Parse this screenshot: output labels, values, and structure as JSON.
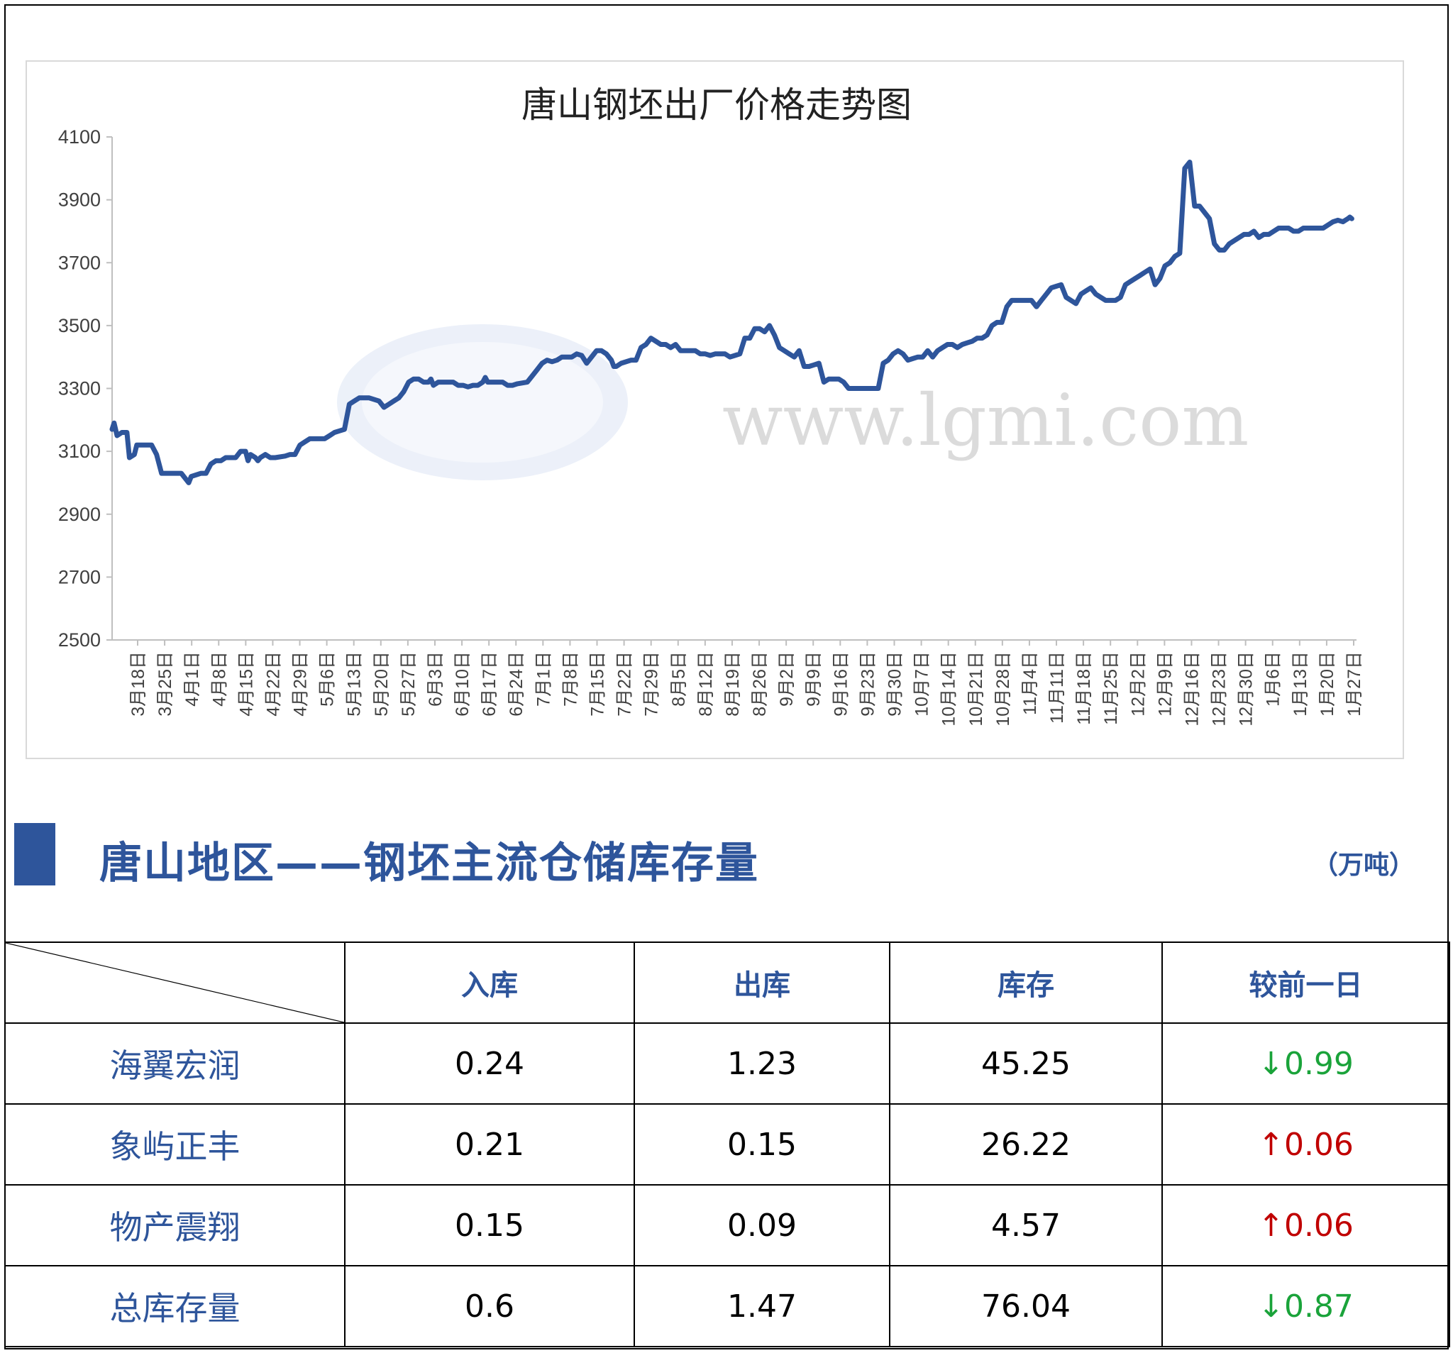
{
  "chart_data": {
    "type": "line",
    "title": "唐山钢坯出厂价格走势图",
    "xlabel": "",
    "ylabel": "",
    "ylim": [
      2500,
      4100
    ],
    "yticks": [
      2500,
      2700,
      2900,
      3100,
      3300,
      3500,
      3700,
      3900,
      4100
    ],
    "xtick_labels": [
      "3月18日",
      "3月25日",
      "4月1日",
      "4月8日",
      "4月15日",
      "4月22日",
      "4月29日",
      "5月6日",
      "5月13日",
      "5月20日",
      "5月27日",
      "6月3日",
      "6月10日",
      "6月17日",
      "6月24日",
      "7月1日",
      "7月8日",
      "7月15日",
      "7月22日",
      "7月29日",
      "8月5日",
      "8月12日",
      "8月19日",
      "8月26日",
      "9月2日",
      "9月9日",
      "9月16日",
      "9月23日",
      "9月30日",
      "10月7日",
      "10月14日",
      "10月21日",
      "10月28日",
      "11月4日",
      "11月11日",
      "11月18日",
      "11月25日",
      "12月2日",
      "12月9日",
      "12月16日",
      "12月23日",
      "12月30日",
      "1月6日",
      "1月13日",
      "1月20日",
      "1月27日"
    ],
    "grid": false,
    "legend": "none",
    "color": "#2e559b",
    "watermark": "www.lgmi.com",
    "series": [
      {
        "name": "",
        "points": [
          [
            0,
            3170
          ],
          [
            0.4,
            3190
          ],
          [
            1,
            3150
          ],
          [
            2,
            3160
          ],
          [
            3,
            3160
          ],
          [
            3.5,
            3080
          ],
          [
            4.5,
            3090
          ],
          [
            5,
            3120
          ],
          [
            6,
            3120
          ],
          [
            7,
            3120
          ],
          [
            8,
            3120
          ],
          [
            9,
            3090
          ],
          [
            9.5,
            3060
          ],
          [
            10,
            3030
          ],
          [
            12,
            3030
          ],
          [
            14,
            3030
          ],
          [
            15,
            3010
          ],
          [
            15.5,
            3000
          ],
          [
            16,
            3020
          ],
          [
            18,
            3030
          ],
          [
            19,
            3030
          ],
          [
            20,
            3060
          ],
          [
            21,
            3070
          ],
          [
            22,
            3070
          ],
          [
            23,
            3080
          ],
          [
            25,
            3080
          ],
          [
            26,
            3100
          ],
          [
            27,
            3100
          ],
          [
            27.5,
            3070
          ],
          [
            28,
            3090
          ],
          [
            29,
            3080
          ],
          [
            29.5,
            3070
          ],
          [
            30,
            3080
          ],
          [
            31,
            3090
          ],
          [
            32,
            3080
          ],
          [
            33,
            3080
          ],
          [
            35,
            3085
          ],
          [
            36,
            3090
          ],
          [
            37,
            3090
          ],
          [
            38,
            3120
          ],
          [
            39,
            3130
          ],
          [
            40,
            3140
          ],
          [
            42,
            3140
          ],
          [
            43,
            3140
          ],
          [
            44,
            3150
          ],
          [
            45,
            3160
          ],
          [
            46,
            3165
          ],
          [
            47,
            3170
          ],
          [
            48,
            3250
          ],
          [
            49,
            3260
          ],
          [
            50,
            3270
          ],
          [
            52,
            3270
          ],
          [
            54,
            3260
          ],
          [
            55,
            3240
          ],
          [
            56,
            3250
          ],
          [
            57,
            3260
          ],
          [
            58,
            3270
          ],
          [
            59,
            3290
          ],
          [
            60,
            3320
          ],
          [
            61,
            3330
          ],
          [
            62,
            3330
          ],
          [
            63,
            3320
          ],
          [
            64,
            3320
          ],
          [
            64.5,
            3330
          ],
          [
            65,
            3310
          ],
          [
            66,
            3320
          ],
          [
            68,
            3320
          ],
          [
            69,
            3320
          ],
          [
            70,
            3310
          ],
          [
            71,
            3310
          ],
          [
            72,
            3305
          ],
          [
            73,
            3310
          ],
          [
            74,
            3310
          ],
          [
            75,
            3320
          ],
          [
            75.5,
            3335
          ],
          [
            76,
            3320
          ],
          [
            78,
            3320
          ],
          [
            79,
            3320
          ],
          [
            80,
            3310
          ],
          [
            81,
            3310
          ],
          [
            82,
            3315
          ],
          [
            84,
            3320
          ],
          [
            85,
            3340
          ],
          [
            86,
            3360
          ],
          [
            87,
            3380
          ],
          [
            88,
            3390
          ],
          [
            89,
            3385
          ],
          [
            90,
            3390
          ],
          [
            91,
            3400
          ],
          [
            93,
            3400
          ],
          [
            94,
            3410
          ],
          [
            95,
            3405
          ],
          [
            96,
            3380
          ],
          [
            97,
            3400
          ],
          [
            98,
            3420
          ],
          [
            99,
            3420
          ],
          [
            100,
            3410
          ],
          [
            101,
            3390
          ],
          [
            101.5,
            3370
          ],
          [
            102,
            3370
          ],
          [
            103,
            3380
          ],
          [
            105,
            3390
          ],
          [
            106,
            3390
          ],
          [
            107,
            3430
          ],
          [
            108,
            3440
          ],
          [
            109,
            3460
          ],
          [
            110,
            3450
          ],
          [
            111,
            3440
          ],
          [
            112,
            3440
          ],
          [
            113,
            3430
          ],
          [
            114,
            3440
          ],
          [
            115,
            3420
          ],
          [
            117,
            3420
          ],
          [
            118,
            3420
          ],
          [
            119,
            3410
          ],
          [
            120,
            3410
          ],
          [
            121,
            3405
          ],
          [
            122,
            3410
          ],
          [
            123,
            3410
          ],
          [
            124,
            3410
          ],
          [
            125,
            3400
          ],
          [
            126,
            3405
          ],
          [
            127,
            3410
          ],
          [
            128,
            3460
          ],
          [
            129,
            3460
          ],
          [
            130,
            3490
          ],
          [
            131,
            3490
          ],
          [
            132,
            3480
          ],
          [
            133,
            3500
          ],
          [
            134,
            3470
          ],
          [
            135,
            3430
          ],
          [
            136,
            3420
          ],
          [
            137,
            3410
          ],
          [
            138,
            3400
          ],
          [
            139,
            3420
          ],
          [
            140,
            3370
          ],
          [
            141,
            3370
          ],
          [
            142,
            3375
          ],
          [
            143,
            3380
          ],
          [
            144,
            3320
          ],
          [
            145,
            3330
          ],
          [
            146,
            3330
          ],
          [
            147,
            3330
          ],
          [
            148,
            3320
          ],
          [
            149,
            3300
          ],
          [
            151,
            3300
          ],
          [
            153,
            3300
          ],
          [
            154,
            3300
          ],
          [
            155,
            3300
          ],
          [
            156,
            3380
          ],
          [
            157,
            3390
          ],
          [
            158,
            3410
          ],
          [
            159,
            3420
          ],
          [
            160,
            3410
          ],
          [
            161,
            3390
          ],
          [
            162,
            3395
          ],
          [
            163,
            3400
          ],
          [
            164,
            3400
          ],
          [
            165,
            3420
          ],
          [
            166,
            3400
          ],
          [
            167,
            3420
          ],
          [
            168,
            3430
          ],
          [
            169,
            3440
          ],
          [
            170,
            3440
          ],
          [
            171,
            3430
          ],
          [
            172,
            3440
          ],
          [
            173,
            3445
          ],
          [
            174,
            3450
          ],
          [
            175,
            3460
          ],
          [
            176,
            3460
          ],
          [
            177,
            3470
          ],
          [
            178,
            3500
          ],
          [
            179,
            3510
          ],
          [
            180,
            3510
          ],
          [
            181,
            3560
          ],
          [
            182,
            3580
          ],
          [
            184,
            3580
          ],
          [
            185,
            3580
          ],
          [
            186,
            3580
          ],
          [
            187,
            3560
          ],
          [
            188,
            3580
          ],
          [
            189,
            3600
          ],
          [
            190,
            3620
          ],
          [
            191,
            3625
          ],
          [
            192,
            3630
          ],
          [
            193,
            3590
          ],
          [
            194,
            3580
          ],
          [
            195,
            3570
          ],
          [
            196,
            3600
          ],
          [
            197,
            3610
          ],
          [
            198,
            3620
          ],
          [
            199,
            3600
          ],
          [
            200,
            3590
          ],
          [
            201,
            3580
          ],
          [
            202,
            3580
          ],
          [
            203,
            3580
          ],
          [
            204,
            3590
          ],
          [
            205,
            3630
          ],
          [
            206,
            3640
          ],
          [
            207,
            3650
          ],
          [
            208,
            3660
          ],
          [
            209,
            3670
          ],
          [
            210,
            3680
          ],
          [
            211,
            3630
          ],
          [
            212,
            3650
          ],
          [
            213,
            3690
          ],
          [
            214,
            3700
          ],
          [
            215,
            3720
          ],
          [
            216,
            3730
          ],
          [
            217,
            4000
          ],
          [
            218,
            4020
          ],
          [
            219,
            3880
          ],
          [
            220,
            3880
          ],
          [
            221,
            3860
          ],
          [
            222,
            3840
          ],
          [
            223,
            3760
          ],
          [
            224,
            3740
          ],
          [
            225,
            3740
          ],
          [
            226,
            3760
          ],
          [
            227,
            3770
          ],
          [
            228,
            3780
          ],
          [
            229,
            3790
          ],
          [
            230,
            3790
          ],
          [
            231,
            3800
          ],
          [
            232,
            3780
          ],
          [
            233,
            3790
          ],
          [
            234,
            3790
          ],
          [
            235,
            3800
          ],
          [
            236,
            3810
          ],
          [
            237,
            3810
          ],
          [
            238,
            3810
          ],
          [
            239,
            3800
          ],
          [
            240,
            3800
          ],
          [
            241,
            3810
          ],
          [
            242,
            3810
          ],
          [
            243,
            3810
          ],
          [
            244,
            3810
          ],
          [
            245,
            3810
          ],
          [
            246,
            3820
          ],
          [
            247,
            3830
          ],
          [
            248,
            3835
          ],
          [
            249,
            3830
          ],
          [
            250,
            3840
          ],
          [
            250.4,
            3845
          ],
          [
            250.8,
            3840
          ]
        ]
      }
    ]
  },
  "section": {
    "title": "唐山地区——钢坯主流仓储库存量",
    "unit": "（万吨）"
  },
  "table": {
    "headers": [
      "入库",
      "出库",
      "库存",
      "较前一日"
    ],
    "rows": [
      {
        "name": "海翼宏润",
        "in": "0.24",
        "out": "1.23",
        "stock": "45.25",
        "change": "↓0.99",
        "dir": "down"
      },
      {
        "name": "象屿正丰",
        "in": "0.21",
        "out": "0.15",
        "stock": "26.22",
        "change": "↑0.06",
        "dir": "up"
      },
      {
        "name": "物产震翔",
        "in": "0.15",
        "out": "0.09",
        "stock": "4.57",
        "change": "↑0.06",
        "dir": "up"
      },
      {
        "name": "总库存量",
        "in": "0.6",
        "out": "1.47",
        "stock": "76.04",
        "change": "↓0.87",
        "dir": "down"
      }
    ]
  }
}
